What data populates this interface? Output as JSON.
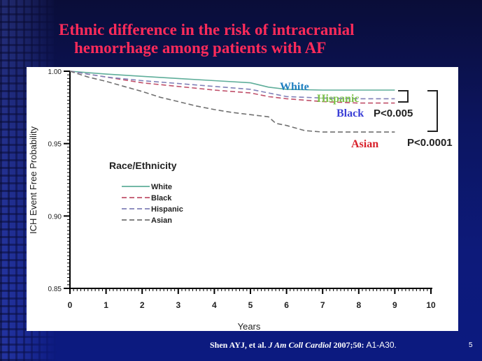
{
  "slide": {
    "title_line1": "Ethnic difference in the risk of intracranial",
    "title_line2": "hemorrhage among patients with AF",
    "citation_authors": "Shen AYJ, et al.",
    "citation_journal": "J Am Coll Cardiol",
    "citation_ref": "2007;50:",
    "citation_pages": "A1-A30.",
    "slide_number": "5",
    "colors": {
      "title": "#ff2b5a",
      "white_label": "#1f7fc0",
      "hispanic_label": "#7cc14a",
      "black_label": "#3b3fd6",
      "asian_label": "#d8202a"
    }
  },
  "chart_data": {
    "type": "line",
    "title": "",
    "xlabel": "Years",
    "ylabel": "ICH Event Free Probability",
    "xlim": [
      0,
      10
    ],
    "ylim": [
      0.85,
      1.0
    ],
    "x_ticks": [
      "0",
      "1",
      "2",
      "3",
      "4",
      "5",
      "6",
      "7",
      "8",
      "9",
      "10"
    ],
    "y_ticks": [
      "1.00",
      "0.95",
      "0.90",
      "0.85"
    ],
    "grid": false,
    "legend": {
      "title": "Race/Ethnicity",
      "placement": "left-middle",
      "entries": [
        "White",
        "Black",
        "Hispanic",
        "Asian"
      ]
    },
    "series": [
      {
        "name": "White",
        "color": "#5fae9a",
        "dash": "solid",
        "x": [
          0,
          1,
          2,
          3,
          4,
          5,
          5.5,
          6,
          7,
          8,
          9
        ],
        "y": [
          1.0,
          0.998,
          0.9965,
          0.995,
          0.9935,
          0.992,
          0.989,
          0.9875,
          0.987,
          0.987,
          0.987
        ]
      },
      {
        "name": "Black",
        "color": "#c0506a",
        "dash": "dashed",
        "x": [
          0,
          1,
          2,
          3,
          4,
          5,
          5.5,
          6,
          7,
          8,
          9
        ],
        "y": [
          1.0,
          0.996,
          0.992,
          0.9895,
          0.987,
          0.985,
          0.9825,
          0.981,
          0.979,
          0.978,
          0.978
        ]
      },
      {
        "name": "Hispanic",
        "color": "#8080b8",
        "dash": "dashed",
        "x": [
          0,
          1,
          2,
          3,
          4,
          5,
          5.5,
          6,
          7,
          8,
          9
        ],
        "y": [
          1.0,
          0.996,
          0.9935,
          0.9915,
          0.9895,
          0.9875,
          0.985,
          0.9825,
          0.9815,
          0.981,
          0.981
        ]
      },
      {
        "name": "Asian",
        "color": "#707070",
        "dash": "dashed",
        "x": [
          0,
          0.5,
          1,
          1.5,
          2,
          2.5,
          3,
          3.5,
          4,
          4.5,
          5,
          5.5,
          5.7,
          6,
          6.5,
          7,
          8,
          9
        ],
        "y": [
          1.0,
          0.996,
          0.993,
          0.9895,
          0.986,
          0.982,
          0.979,
          0.976,
          0.9735,
          0.9715,
          0.97,
          0.9685,
          0.964,
          0.9625,
          0.959,
          0.958,
          0.958,
          0.958
        ]
      }
    ],
    "annotations": [
      {
        "text": "White",
        "kind": "series-label"
      },
      {
        "text": "Hispanic",
        "kind": "series-label"
      },
      {
        "text": "Black",
        "kind": "series-label"
      },
      {
        "text": "Asian",
        "kind": "series-label"
      },
      {
        "text": "P<0.005",
        "kind": "p-value"
      },
      {
        "text": "P<0.0001",
        "kind": "p-value"
      }
    ]
  }
}
